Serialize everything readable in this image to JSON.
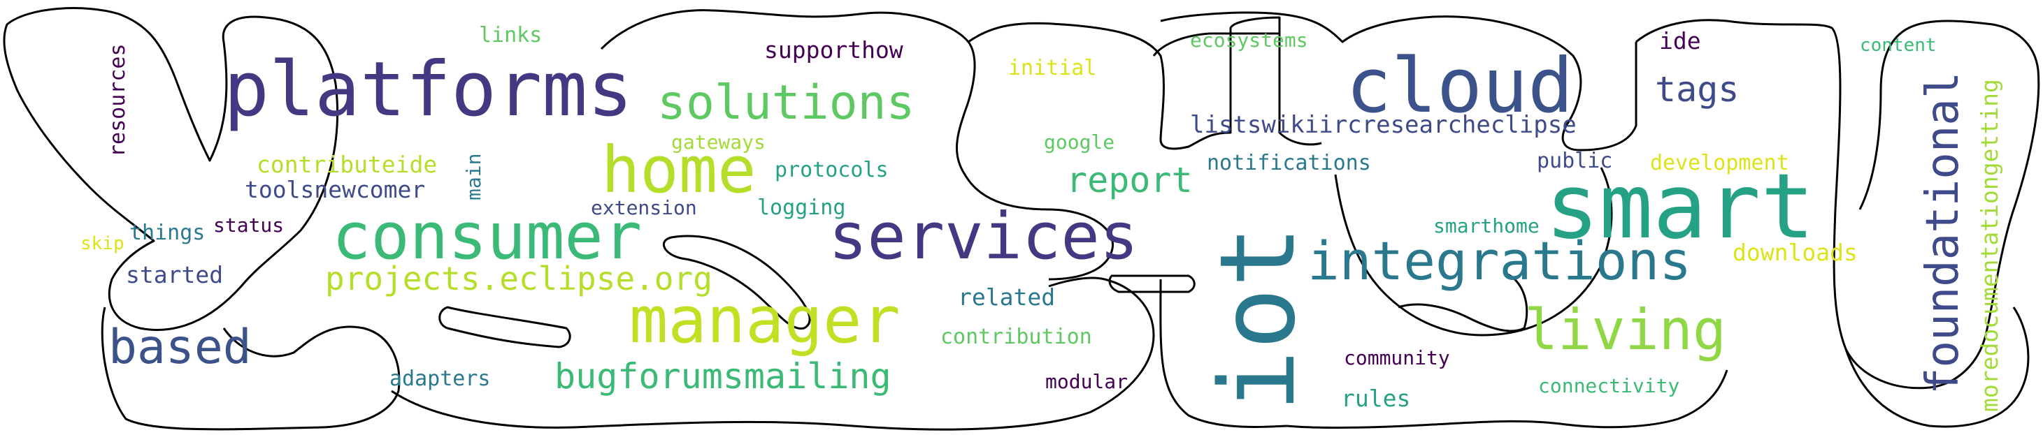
{
  "words": [
    {
      "text": "platforms",
      "color": "#453781"
    },
    {
      "text": "cloud",
      "color": "#3b528b"
    },
    {
      "text": "smart",
      "color": "#25a186"
    },
    {
      "text": "iot",
      "color": "#2a788e"
    },
    {
      "text": "services",
      "color": "#453781"
    },
    {
      "text": "consumer",
      "color": "#3aba76"
    },
    {
      "text": "home",
      "color": "#b5de2b"
    },
    {
      "text": "manager",
      "color": "#c2df23"
    },
    {
      "text": "solutions",
      "color": "#5ec962"
    },
    {
      "text": "integrations",
      "color": "#2a788e"
    },
    {
      "text": "living",
      "color": "#8fd744"
    },
    {
      "text": "based",
      "color": "#3b528b"
    },
    {
      "text": "foundational",
      "color": "#3e4a89"
    },
    {
      "text": "moredocumentationgetting",
      "color": "#a2da37"
    },
    {
      "text": "projects.eclipse.org",
      "color": "#b5de2b"
    },
    {
      "text": "bugforumsmailing",
      "color": "#3aba76"
    },
    {
      "text": "report",
      "color": "#3aba76"
    },
    {
      "text": "tags",
      "color": "#3e4a89"
    },
    {
      "text": "listswikiircresearcheclipse",
      "color": "#3e4a89"
    },
    {
      "text": "supporthow",
      "color": "#440154"
    },
    {
      "text": "links",
      "color": "#5ec962"
    },
    {
      "text": "resources",
      "color": "#440154"
    },
    {
      "text": "contributeide",
      "color": "#b5de2b"
    },
    {
      "text": "toolsnewcomer",
      "color": "#3e4a89"
    },
    {
      "text": "main",
      "color": "#2a788e"
    },
    {
      "text": "gateways",
      "color": "#a2da37"
    },
    {
      "text": "protocols",
      "color": "#25a186"
    },
    {
      "text": "extension",
      "color": "#3e4a89"
    },
    {
      "text": "logging",
      "color": "#25a186"
    },
    {
      "text": "things",
      "color": "#2a788e"
    },
    {
      "text": "status",
      "color": "#440154"
    },
    {
      "text": "skip",
      "color": "#dce319"
    },
    {
      "text": "started",
      "color": "#3e4a89"
    },
    {
      "text": "initial",
      "color": "#dce319"
    },
    {
      "text": "google",
      "color": "#5ec962"
    },
    {
      "text": "ecosystems",
      "color": "#5ec962"
    },
    {
      "text": "notifications",
      "color": "#2a788e"
    },
    {
      "text": "related",
      "color": "#2a788e"
    },
    {
      "text": "contribution",
      "color": "#5ec962"
    },
    {
      "text": "modular",
      "color": "#440154"
    },
    {
      "text": "adapters",
      "color": "#2a788e"
    },
    {
      "text": "ide",
      "color": "#440154"
    },
    {
      "text": "public",
      "color": "#3e4a89"
    },
    {
      "text": "development",
      "color": "#dce319"
    },
    {
      "text": "content",
      "color": "#3aba76"
    },
    {
      "text": "smarthome",
      "color": "#25a186"
    },
    {
      "text": "downloads",
      "color": "#dce319"
    },
    {
      "text": "community",
      "color": "#440154"
    },
    {
      "text": "rules",
      "color": "#25a186"
    },
    {
      "text": "connectivity",
      "color": "#3aba76"
    }
  ]
}
